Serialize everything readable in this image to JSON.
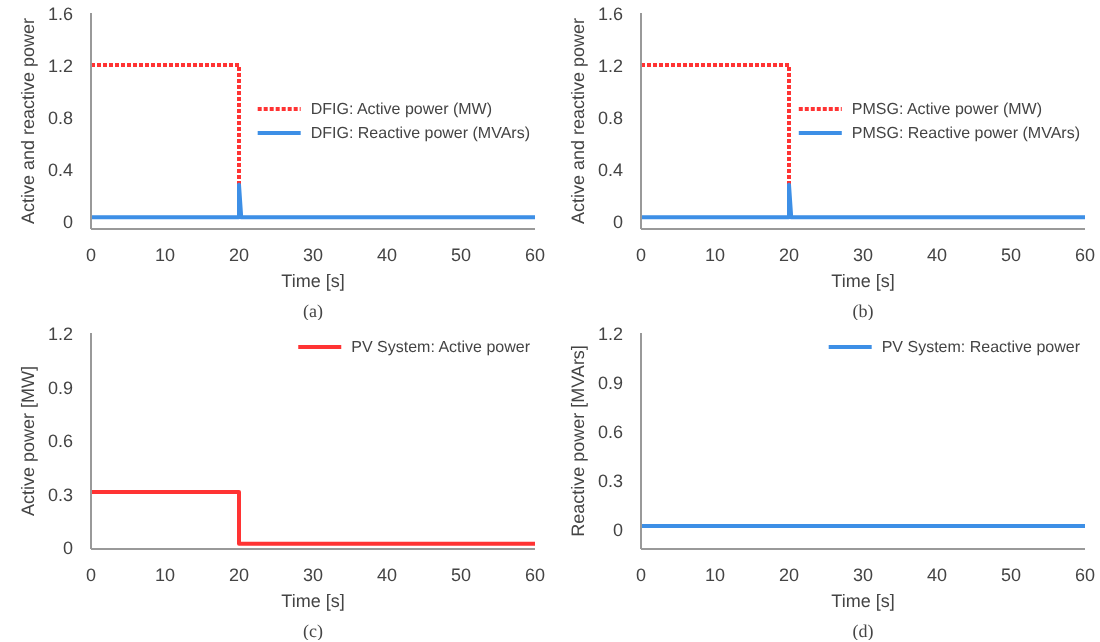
{
  "chart_data": [
    {
      "type": "line",
      "xlabel": "Time [s]",
      "ylabel": "Active and reactive power",
      "annotations": [
        "(a)"
      ],
      "xlim": [
        0,
        60
      ],
      "xticks": [
        0,
        10,
        20,
        30,
        40,
        50,
        60
      ],
      "ylim": [
        -0.06,
        1.6
      ],
      "yticks": [
        0,
        0.4,
        0.8,
        1.2,
        1.6
      ],
      "grid": false,
      "legend": "right",
      "series": [
        {
          "name": "DFIG: Active power (MW)",
          "color": "#ff3333",
          "line_style": "dashed",
          "x": [
            0,
            20,
            20
          ],
          "values": [
            1.2,
            1.2,
            0.28
          ]
        },
        {
          "name": "DFIG: Reactive power (MVArs)",
          "color": "#3d8fe6",
          "line_style": "solid",
          "x": [
            0,
            20,
            20,
            20.3,
            60
          ],
          "values": [
            0.03,
            0.03,
            0.28,
            0.03,
            0.03
          ]
        }
      ]
    },
    {
      "type": "line",
      "xlabel": "Time [s]",
      "ylabel": "Active and reactive power",
      "annotations": [
        "(b)"
      ],
      "xlim": [
        0,
        60
      ],
      "xticks": [
        0,
        10,
        20,
        30,
        40,
        50,
        60
      ],
      "ylim": [
        -0.06,
        1.6
      ],
      "yticks": [
        0,
        0.4,
        0.8,
        1.2,
        1.6
      ],
      "grid": false,
      "legend": "right",
      "series": [
        {
          "name": "PMSG: Active power (MW)",
          "color": "#ff3333",
          "line_style": "dashed",
          "x": [
            0,
            20,
            20
          ],
          "values": [
            1.2,
            1.2,
            0.28
          ]
        },
        {
          "name": "PMSG: Reactive power (MVArs)",
          "color": "#3d8fe6",
          "line_style": "solid",
          "x": [
            0,
            20,
            20,
            20.3,
            60
          ],
          "values": [
            0.03,
            0.03,
            0.28,
            0.03,
            0.03
          ]
        }
      ]
    },
    {
      "type": "line",
      "xlabel": "Time [s]",
      "ylabel": "Active power [MW]",
      "annotations": [
        "(c)"
      ],
      "xlim": [
        0,
        60
      ],
      "xticks": [
        0,
        10,
        20,
        30,
        40,
        50,
        60
      ],
      "ylim": [
        -0.01,
        1.2
      ],
      "yticks": [
        0,
        0.3,
        0.6,
        0.9,
        1.2
      ],
      "grid": false,
      "legend": "top right",
      "series": [
        {
          "name": "PV System: Active power",
          "color": "#ff3333",
          "line_style": "solid",
          "x": [
            0,
            20,
            20,
            60
          ],
          "values": [
            0.31,
            0.31,
            0.02,
            0.02
          ]
        }
      ]
    },
    {
      "type": "line",
      "xlabel": "Time [s]",
      "ylabel": "Reactive power [MVArs]",
      "annotations": [
        "(d)"
      ],
      "xlim": [
        0,
        60
      ],
      "xticks": [
        0,
        10,
        20,
        30,
        40,
        50,
        60
      ],
      "ylim": [
        -0.12,
        1.2
      ],
      "yticks": [
        0,
        0.3,
        0.6,
        0.9,
        1.2
      ],
      "grid": false,
      "legend": "top right",
      "series": [
        {
          "name": "PV System: Reactive power",
          "color": "#3d8fe6",
          "line_style": "solid",
          "x": [
            0,
            60
          ],
          "values": [
            0.02,
            0.02
          ]
        }
      ]
    }
  ]
}
